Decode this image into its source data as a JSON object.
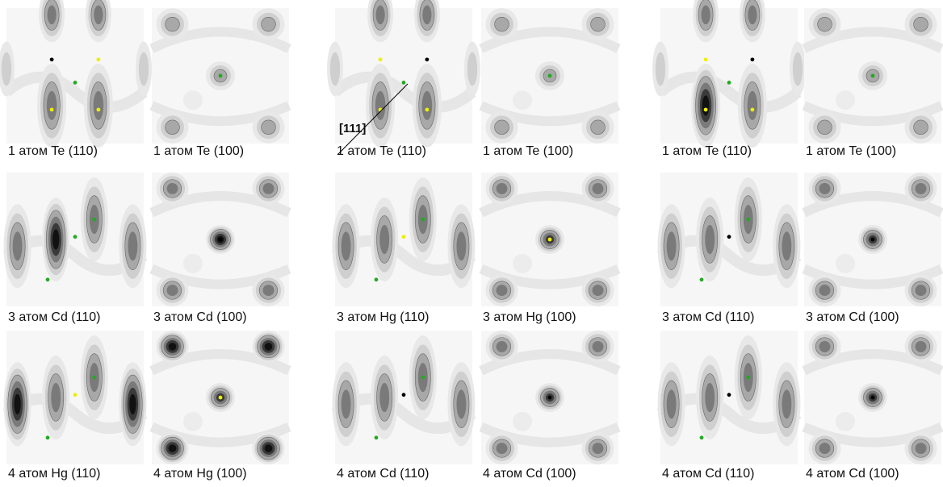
{
  "groups": [
    {
      "rows": [
        {
          "left": "1 атом Te (110)",
          "right": "1 атом Te (100)"
        },
        {
          "left": "3 атом Cd (110)",
          "right": "3 атом Cd (100)"
        },
        {
          "left": "4 атом Hg (110)",
          "right": "4 атом Hg (100)"
        }
      ]
    },
    {
      "rows": [
        {
          "left": "1 атом Te (110)",
          "right": "1 атом Te (100)"
        },
        {
          "left": "3 атом Hg (110)",
          "right": "3 атом Hg (100)"
        },
        {
          "left": "4 атом Cd (110)",
          "right": "4 атом Cd (100)"
        }
      ]
    },
    {
      "rows": [
        {
          "left": "1 атом Te (110)",
          "right": "1 атом Te (100)"
        },
        {
          "left": "3 атом Cd (110)",
          "right": "3 атом Cd (100)"
        },
        {
          "left": "4 атом Cd (110)",
          "right": "4 атом Cd (100)"
        }
      ]
    }
  ],
  "direction_label": "[111]"
}
